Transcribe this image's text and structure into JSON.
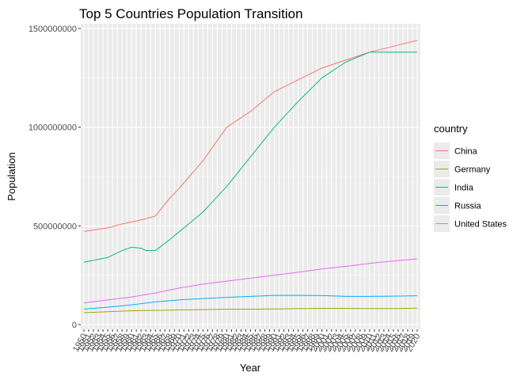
{
  "chart_data": {
    "type": "line",
    "title": "Top 5 Countries Population Transition",
    "xlabel": "Year",
    "ylabel": "Population",
    "x_range": [
      1950,
      2020
    ],
    "ylim": [
      0,
      1500000000
    ],
    "y_ticks": [
      0,
      500000000,
      1000000000,
      1500000000
    ],
    "y_tick_labels": [
      "0",
      "500000000",
      "1000000000",
      "1500000000"
    ],
    "x_tick_labels": [
      "1950",
      "1951",
      "1952",
      "1953",
      "1954",
      "1955",
      "1956",
      "1957",
      "1958",
      "1959",
      "1960",
      "1961",
      "1962",
      "1963",
      "1964",
      "1965",
      "1966",
      "1967",
      "1968",
      "1969",
      "1970",
      "1971",
      "1972",
      "1973",
      "1974",
      "1975",
      "1976",
      "1977",
      "1978",
      "1979",
      "1980",
      "1981",
      "1982",
      "1983",
      "1984",
      "1985",
      "1986",
      "1987",
      "1988",
      "1989",
      "1990",
      "1991",
      "1992",
      "1993",
      "1994",
      "1995",
      "1996",
      "1997",
      "1998",
      "1999",
      "2000",
      "2001",
      "2002",
      "2003",
      "2004",
      "2005",
      "2006",
      "2007",
      "2008",
      "2009",
      "2010",
      "2011",
      "2012",
      "2013",
      "2014",
      "2015",
      "2016",
      "2017",
      "2018",
      "2019",
      "2020"
    ],
    "grid": true,
    "legend_position": "right",
    "legend_title": "country",
    "series": [
      {
        "name": "China",
        "color": "#F8766D",
        "x": [
          1950,
          1955,
          1958,
          1960,
          1962,
          1965,
          1968,
          1970,
          1975,
          1980,
          1985,
          1990,
          1995,
          2000,
          2005,
          2010,
          2015,
          2020
        ],
        "y": [
          472000000,
          490000000,
          510000000,
          520000000,
          530000000,
          550000000,
          640000000,
          690000000,
          830000000,
          1000000000,
          1080000000,
          1180000000,
          1240000000,
          1300000000,
          1340000000,
          1380000000,
          1410000000,
          1440000000
        ]
      },
      {
        "name": "Germany",
        "color": "#A3A500",
        "x": [
          1950,
          1955,
          1960,
          1965,
          1970,
          1975,
          1980,
          1985,
          1990,
          1995,
          2000,
          2005,
          2010,
          2015,
          2020
        ],
        "y": [
          60000000,
          65000000,
          70000000,
          72000000,
          74000000,
          76000000,
          78000000,
          78000000,
          79000000,
          81000000,
          82000000,
          82000000,
          81000000,
          81000000,
          83000000
        ]
      },
      {
        "name": "India",
        "color": "#00BF7D",
        "x": [
          1950,
          1955,
          1958,
          1960,
          1962,
          1963,
          1965,
          1968,
          1970,
          1975,
          1980,
          1985,
          1990,
          1995,
          2000,
          2005,
          2010,
          2015,
          2020
        ],
        "y": [
          316000000,
          340000000,
          375000000,
          392000000,
          387000000,
          375000000,
          375000000,
          430000000,
          470000000,
          570000000,
          700000000,
          850000000,
          1000000000,
          1130000000,
          1250000000,
          1330000000,
          1380000000,
          1380000000,
          1380000000
        ]
      },
      {
        "name": "Russia",
        "color": "#00B0F6",
        "x": [
          1950,
          1955,
          1960,
          1965,
          1970,
          1975,
          1980,
          1985,
          1990,
          1995,
          2000,
          2005,
          2010,
          2015,
          2020
        ],
        "y": [
          78000000,
          88000000,
          100000000,
          115000000,
          125000000,
          132000000,
          138000000,
          143000000,
          148000000,
          148000000,
          147000000,
          143000000,
          143000000,
          144000000,
          146000000
        ]
      },
      {
        "name": "United States",
        "color": "#E76BF3",
        "x": [
          1950,
          1955,
          1960,
          1965,
          1970,
          1975,
          1980,
          1985,
          1990,
          1995,
          2000,
          2005,
          2010,
          2015,
          2020
        ],
        "y": [
          110000000,
          125000000,
          140000000,
          160000000,
          185000000,
          205000000,
          220000000,
          235000000,
          250000000,
          265000000,
          282000000,
          295000000,
          310000000,
          322000000,
          333000000
        ]
      }
    ]
  }
}
